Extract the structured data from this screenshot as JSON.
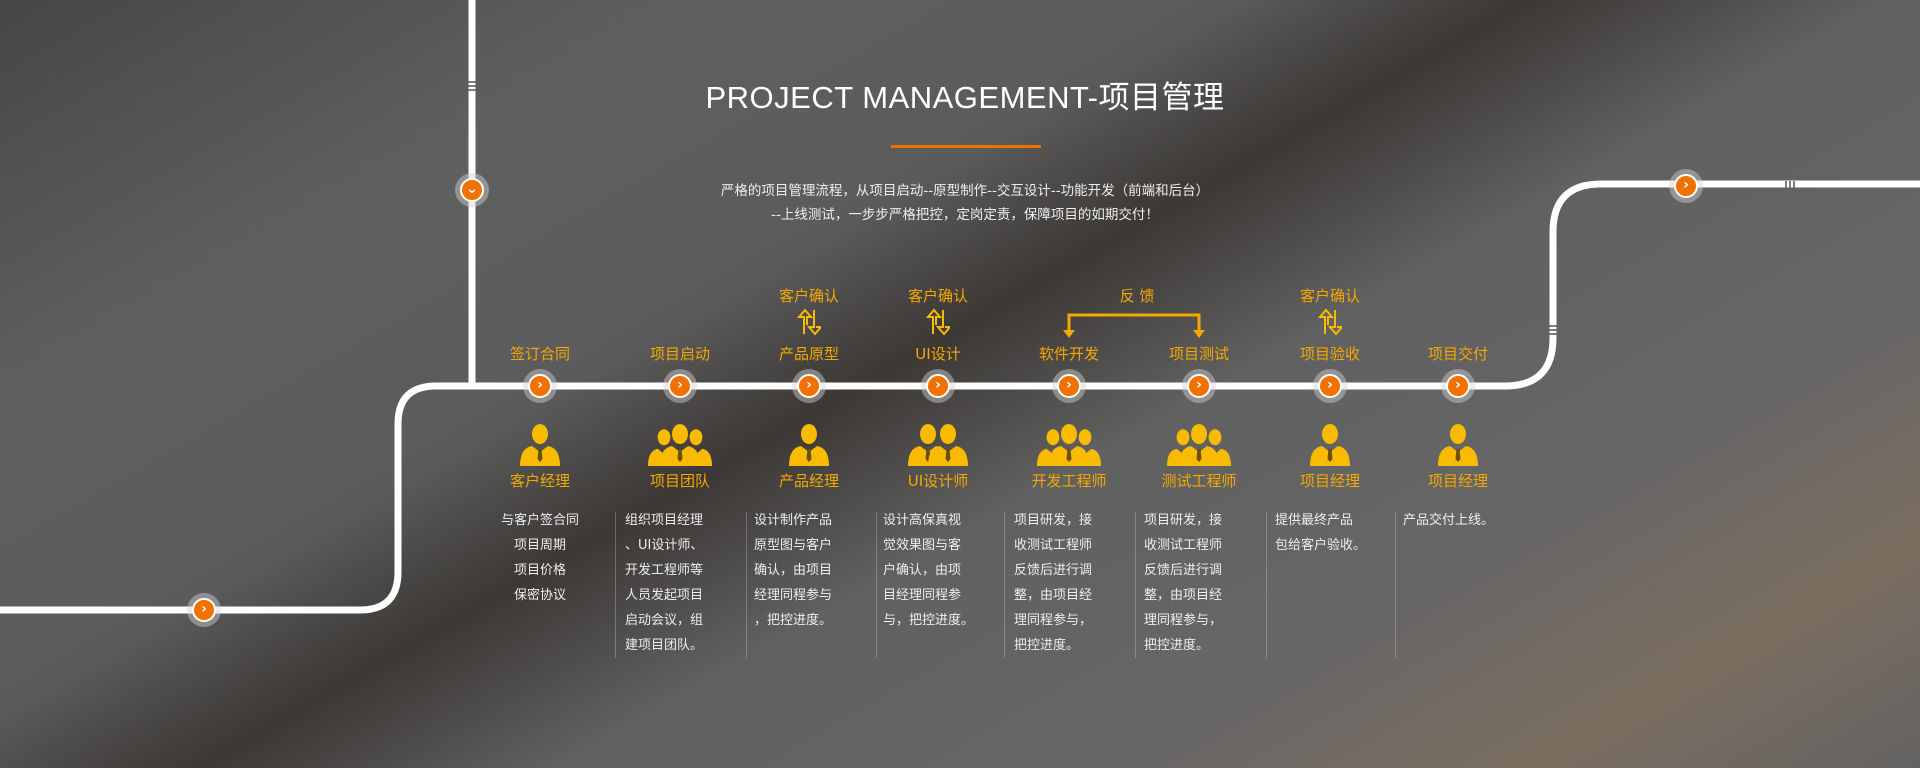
{
  "header": {
    "title": "PROJECT MANAGEMENT-项目管理",
    "subtitle_lines": [
      "严格的项目管理流程，从项目启动--原型制作--交互设计--功能开发（前端和后台）",
      "--上线测试，一步步严格把控，定岗定责，保障项目的如期交付！"
    ]
  },
  "colors": {
    "accent": "#f07000",
    "label": "#f5a800",
    "icon": "#f9bb00"
  },
  "steps": [
    {
      "label": "签订合同",
      "role": "客户经理",
      "people": 1,
      "desc": [
        "与客户签合同",
        "项目周期",
        "项目价格",
        "保密协议"
      ]
    },
    {
      "label": "项目启动",
      "role": "项目团队",
      "people": 3,
      "desc": [
        "组织项目经理",
        "、UI设计师、",
        "开发工程师等",
        "人员发起项目",
        "启动会议，组",
        "建项目团队。"
      ]
    },
    {
      "label": "产品原型",
      "role": "产品经理",
      "people": 1,
      "top": "客户确认",
      "desc": [
        "设计制作产品",
        "原型图与客户",
        "确认，由项目",
        "经理同程参与",
        "，把控进度。"
      ]
    },
    {
      "label": "UI设计",
      "role": "UI设计师",
      "people": 2,
      "top": "客户确认",
      "desc": [
        "设计高保真视",
        "觉效果图与客",
        "户确认，由项",
        "目经理同程参",
        "与，把控进度。"
      ]
    },
    {
      "label": "软件开发",
      "role": "开发工程师",
      "people": 3,
      "desc": [
        "项目研发，接",
        "收测试工程师",
        "反馈后进行调",
        "整，由项目经",
        "理同程参与，",
        "把控进度。"
      ]
    },
    {
      "label": "项目测试",
      "role": "测试工程师",
      "people": 3,
      "desc": [
        "项目研发，接",
        "收测试工程师",
        "反馈后进行调",
        "整，由项目经",
        "理同程参与，",
        "把控进度。"
      ]
    },
    {
      "label": "项目验收",
      "role": "项目经理",
      "people": 1,
      "top": "客户确认",
      "desc": [
        "提供最终产品",
        "包给客户验收。"
      ]
    },
    {
      "label": "项目交付",
      "role": "项目经理",
      "people": 1,
      "desc": [
        "产品交付上线。"
      ]
    }
  ],
  "feedback": {
    "label": "反 馈"
  },
  "icons": {
    "node": "chevron-right-icon",
    "node_down": "chevron-down-icon",
    "person": "person-icon",
    "exchange": "exchange-arrows-icon"
  }
}
